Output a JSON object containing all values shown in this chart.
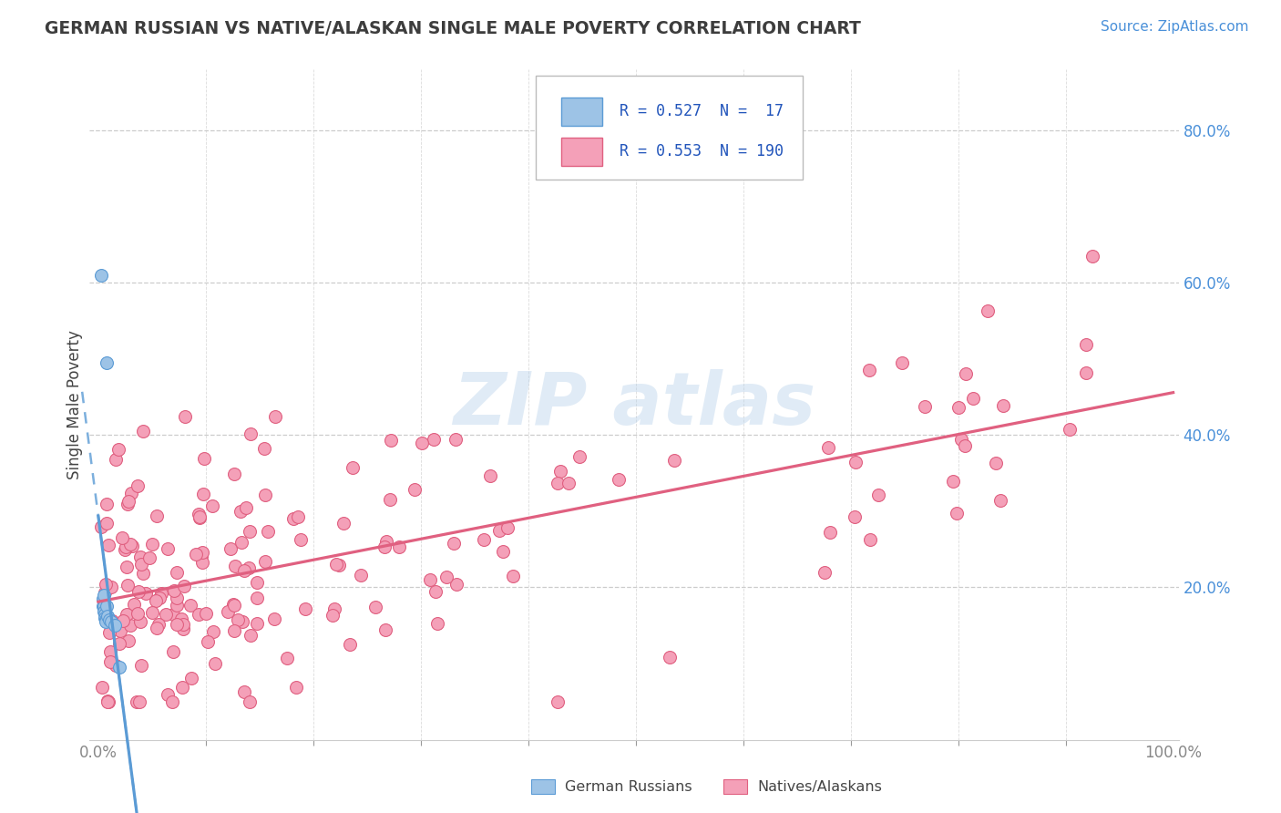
{
  "title": "GERMAN RUSSIAN VS NATIVE/ALASKAN SINGLE MALE POVERTY CORRELATION CHART",
  "source": "Source: ZipAtlas.com",
  "ylabel": "Single Male Poverty",
  "legend_label1": "German Russians",
  "legend_label2": "Natives/Alaskans",
  "blue_color": "#5b9bd5",
  "blue_fill": "#9dc3e6",
  "pink_color": "#e06080",
  "pink_fill": "#f4a0b8",
  "background": "#ffffff",
  "grid_color": "#cccccc",
  "title_color": "#3d3d3d",
  "source_color": "#4a90d9",
  "tick_color_y": "#4a90d9",
  "tick_color_x": "#888888",
  "legend_text_color": "#3d3d3d",
  "legend_value_color": "#2255bb",
  "R_blue": 0.527,
  "N_blue": 17,
  "R_pink": 0.553,
  "N_pink": 190,
  "blue_x": [
    0.003,
    0.004,
    0.004,
    0.005,
    0.005,
    0.005,
    0.006,
    0.006,
    0.007,
    0.007,
    0.008,
    0.008,
    0.009,
    0.01,
    0.012,
    0.015,
    0.02
  ],
  "blue_y": [
    0.61,
    0.185,
    0.175,
    0.19,
    0.175,
    0.168,
    0.165,
    0.16,
    0.158,
    0.155,
    0.495,
    0.175,
    0.162,
    0.158,
    0.155,
    0.15,
    0.095
  ],
  "watermark_text": "ZIP atlas"
}
